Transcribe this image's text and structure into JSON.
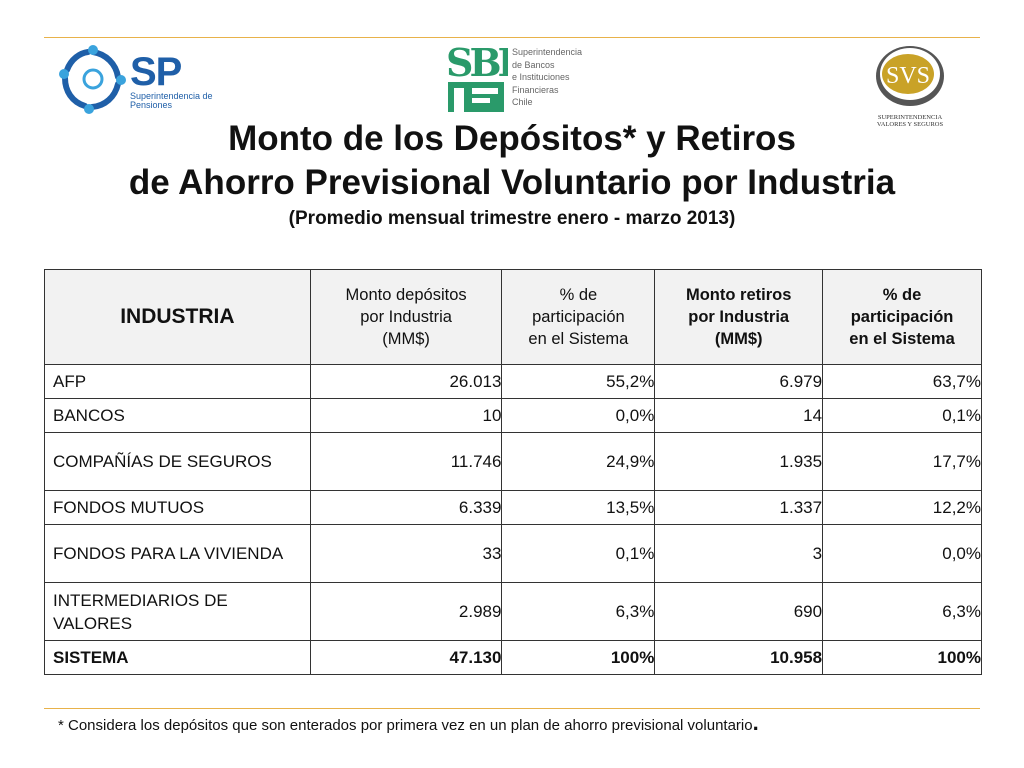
{
  "logos": {
    "sp": {
      "name": "SP",
      "subtitle": "Superintendencia de Pensiones"
    },
    "sbif": {
      "mark": "SBIF",
      "lines": [
        "Superintendencia",
        "de Bancos",
        "e Instituciones",
        "Financieras",
        "Chile"
      ]
    },
    "svs": {
      "name": "SVS",
      "lines": [
        "SUPERINTENDENCIA",
        "VALORES Y SEGUROS"
      ]
    }
  },
  "title": {
    "line1": "Monto de los Depósitos* y Retiros",
    "line2": "de Ahorro Previsional Voluntario por Industria",
    "subtitle": "(Promedio mensual trimestre enero - marzo 2013)"
  },
  "table": {
    "headers": {
      "industria": "INDUSTRIA",
      "depositos": [
        "Monto depósitos",
        "por Industria",
        "(MM$)"
      ],
      "pct_dep": [
        "% de",
        "participación",
        "en el Sistema"
      ],
      "retiros": [
        "Monto retiros",
        "por Industria",
        "(MM$)"
      ],
      "pct_ret": [
        "% de",
        "participación",
        "en el Sistema"
      ]
    },
    "rows": [
      {
        "industria": "AFP",
        "depositos": "26.013",
        "pct_dep": "55,2%",
        "retiros": "6.979",
        "pct_ret": "63,7%"
      },
      {
        "industria": "BANCOS",
        "depositos": "10",
        "pct_dep": "0,0%",
        "retiros": "14",
        "pct_ret": "0,1%"
      },
      {
        "industria": "COMPAÑÍAS DE SEGUROS",
        "depositos": "11.746",
        "pct_dep": "24,9%",
        "retiros": "1.935",
        "pct_ret": "17,7%"
      },
      {
        "industria": "FONDOS MUTUOS",
        "depositos": "6.339",
        "pct_dep": "13,5%",
        "retiros": "1.337",
        "pct_ret": "12,2%"
      },
      {
        "industria": "FONDOS PARA LA VIVIENDA",
        "depositos": "33",
        "pct_dep": "0,1%",
        "retiros": "3",
        "pct_ret": "0,0%"
      },
      {
        "industria": "INTERMEDIARIOS DE VALORES",
        "depositos": "2.989",
        "pct_dep": "6,3%",
        "retiros": "690",
        "pct_ret": "6,3%"
      }
    ],
    "total": {
      "industria": "SISTEMA",
      "depositos": "47.130",
      "pct_dep": "100%",
      "retiros": "10.958",
      "pct_ret": "100%"
    }
  },
  "footnote": {
    "text": "* Considera los depósitos que son enterados por primera vez en un plan de ahorro previsional voluntario",
    "end": "."
  },
  "colors": {
    "rule": "#e8b24a",
    "sp_blue": "#1f5fa8",
    "sbif_green": "#2a9a6a",
    "svs_gold": "#c9a227"
  }
}
